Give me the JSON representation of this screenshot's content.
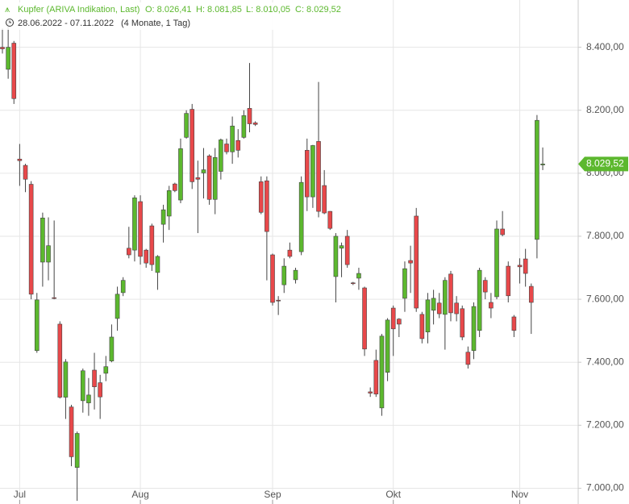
{
  "chart_data": {
    "type": "candlestick",
    "header": {
      "instrument": "Kupfer (ARIVA Indikation, Last)",
      "open": "O: 8.026,41",
      "high": "H: 8.081,85",
      "low": "L: 8.010,05",
      "close": "C: 8.029,52",
      "range": "28.06.2022 - 07.11.2022",
      "span": "(4 Monate, 1 Tag)"
    },
    "categories": [
      null,
      null,
      null,
      "Jul",
      null,
      null,
      null,
      null,
      null,
      null,
      null,
      null,
      null,
      null,
      null,
      null,
      null,
      null,
      null,
      null,
      null,
      null,
      null,
      null,
      "Aug",
      null,
      null,
      null,
      null,
      null,
      null,
      null,
      null,
      null,
      null,
      null,
      null,
      null,
      null,
      null,
      null,
      null,
      null,
      null,
      null,
      null,
      null,
      "Sep",
      null,
      null,
      null,
      null,
      null,
      null,
      null,
      null,
      null,
      null,
      null,
      null,
      null,
      null,
      null,
      null,
      null,
      null,
      null,
      null,
      "Okt",
      null,
      null,
      null,
      null,
      null,
      null,
      null,
      null,
      null,
      null,
      null,
      null,
      null,
      null,
      null,
      null,
      null,
      null,
      null,
      null,
      null,
      "Nov",
      null,
      null,
      null,
      null
    ],
    "open": [
      8400,
      8330,
      8413,
      8045,
      8025,
      7965,
      7437,
      7718,
      7718,
      7605,
      7521,
      7289,
      7258,
      7066,
      7278,
      7271,
      7375,
      7335,
      7365,
      7404,
      7539,
      7621,
      7762,
      7756,
      7910,
      7756,
      7833,
      7685,
      7838,
      7864,
      7966,
      7915,
      8114,
      8203,
      7986,
      8001,
      8055,
      7917,
      8006,
      8093,
      8068,
      8104,
      8114,
      8206,
      8160,
      7973,
      7976,
      7741,
      7597,
      7646,
      7756,
      7662,
      7751,
      8073,
      7925,
      8101,
      7961,
      7879,
      7672,
      7762,
      7800,
      7652,
      7667,
      7636,
      7306,
      7406,
      7255,
      7368,
      7572,
      7537,
      7603,
      7723,
      7864,
      7552,
      7496,
      7565,
      7588,
      7552,
      7680,
      7588,
      7570,
      7432,
      7437,
      7501,
      7660,
      7590,
      7608,
      7823,
      7705,
      7544,
      7708,
      7728,
      7641,
      7790,
      8026.41
    ],
    "high": [
      8460,
      8490,
      8420,
      8093,
      8030,
      7975,
      7620,
      7875,
      7860,
      7850,
      7530,
      7410,
      7265,
      7180,
      7380,
      7350,
      7430,
      7360,
      7420,
      7520,
      7640,
      7670,
      7830,
      7930,
      7930,
      7760,
      7840,
      7740,
      7900,
      7960,
      7970,
      8110,
      8200,
      8220,
      8040,
      8080,
      8060,
      8080,
      8110,
      8110,
      8180,
      8140,
      8200,
      8350,
      8165,
      7990,
      7990,
      7745,
      7610,
      7730,
      7780,
      7700,
      7990,
      8110,
      8090,
      8290,
      8010,
      7880,
      7810,
      7780,
      7820,
      7655,
      7700,
      7640,
      7320,
      7440,
      7490,
      7540,
      7580,
      7540,
      7720,
      7770,
      7890,
      7560,
      7620,
      7630,
      7620,
      7670,
      7690,
      7610,
      7580,
      7450,
      7590,
      7700,
      7670,
      7620,
      7850,
      7880,
      7720,
      7550,
      7730,
      7760,
      7650,
      8185,
      8081.85
    ],
    "low": [
      8380,
      8300,
      8220,
      7960,
      7940,
      7600,
      7430,
      7640,
      7660,
      7600,
      7285,
      7220,
      7070,
      6960,
      7240,
      7230,
      7250,
      7220,
      7340,
      7400,
      7500,
      7610,
      7730,
      7720,
      7710,
      7700,
      7690,
      7630,
      7780,
      7820,
      7940,
      7905,
      8110,
      7950,
      7810,
      7920,
      7900,
      7870,
      7980,
      8060,
      8030,
      8050,
      8110,
      8130,
      8150,
      7870,
      7660,
      7580,
      7550,
      7620,
      7730,
      7650,
      7740,
      7880,
      7890,
      7860,
      7870,
      7820,
      7590,
      7670,
      7700,
      7645,
      7630,
      7420,
      7290,
      7290,
      7230,
      7340,
      7420,
      7480,
      7560,
      7620,
      7560,
      7460,
      7460,
      7520,
      7540,
      7440,
      7530,
      7530,
      7470,
      7380,
      7410,
      7480,
      7600,
      7540,
      7600,
      7800,
      7590,
      7480,
      7650,
      7640,
      7490,
      7730,
      8010.05
    ],
    "close": [
      8395,
      8400,
      8237,
      8040,
      7981,
      7616,
      7598,
      7858,
      7770,
      7603,
      7289,
      7401,
      7100,
      7174,
      7373,
      7296,
      7322,
      7290,
      7386,
      7480,
      7616,
      7660,
      7741,
      7922,
      7736,
      7715,
      7710,
      7736,
      7884,
      7945,
      7945,
      8078,
      8190,
      7973,
      7981,
      8011,
      7917,
      8050,
      8106,
      8068,
      8150,
      8073,
      8183,
      8157,
      8155,
      7876,
      7815,
      7590,
      7595,
      7705,
      7736,
      7692,
      7971,
      7925,
      8088,
      7879,
      7874,
      7825,
      7800,
      7770,
      7710,
      7650,
      7682,
      7442,
      7302,
      7299,
      7483,
      7534,
      7506,
      7521,
      7697,
      7715,
      7572,
      7475,
      7598,
      7603,
      7554,
      7660,
      7557,
      7554,
      7480,
      7393,
      7577,
      7692,
      7623,
      7572,
      7823,
      7805,
      7611,
      7501,
      7703,
      7682,
      7590,
      8168,
      8029.52
    ],
    "up_color": "#5cb82e",
    "down_color": "#e8484a",
    "ylim": [
      6950,
      8550
    ],
    "yticks": [
      {
        "value": 7000,
        "label": "7.000,00"
      },
      {
        "value": 7200,
        "label": "7.200,00"
      },
      {
        "value": 7400,
        "label": "7.400,00"
      },
      {
        "value": 7600,
        "label": "7.600,00"
      },
      {
        "value": 7800,
        "label": "7.800,00"
      },
      {
        "value": 8000,
        "label": "8.000,00"
      },
      {
        "value": 8200,
        "label": "8.200,00"
      },
      {
        "value": 8400,
        "label": "8.400,00"
      }
    ],
    "grid": true,
    "last_price": {
      "value": 8029.52,
      "label": "8.029,52"
    }
  }
}
